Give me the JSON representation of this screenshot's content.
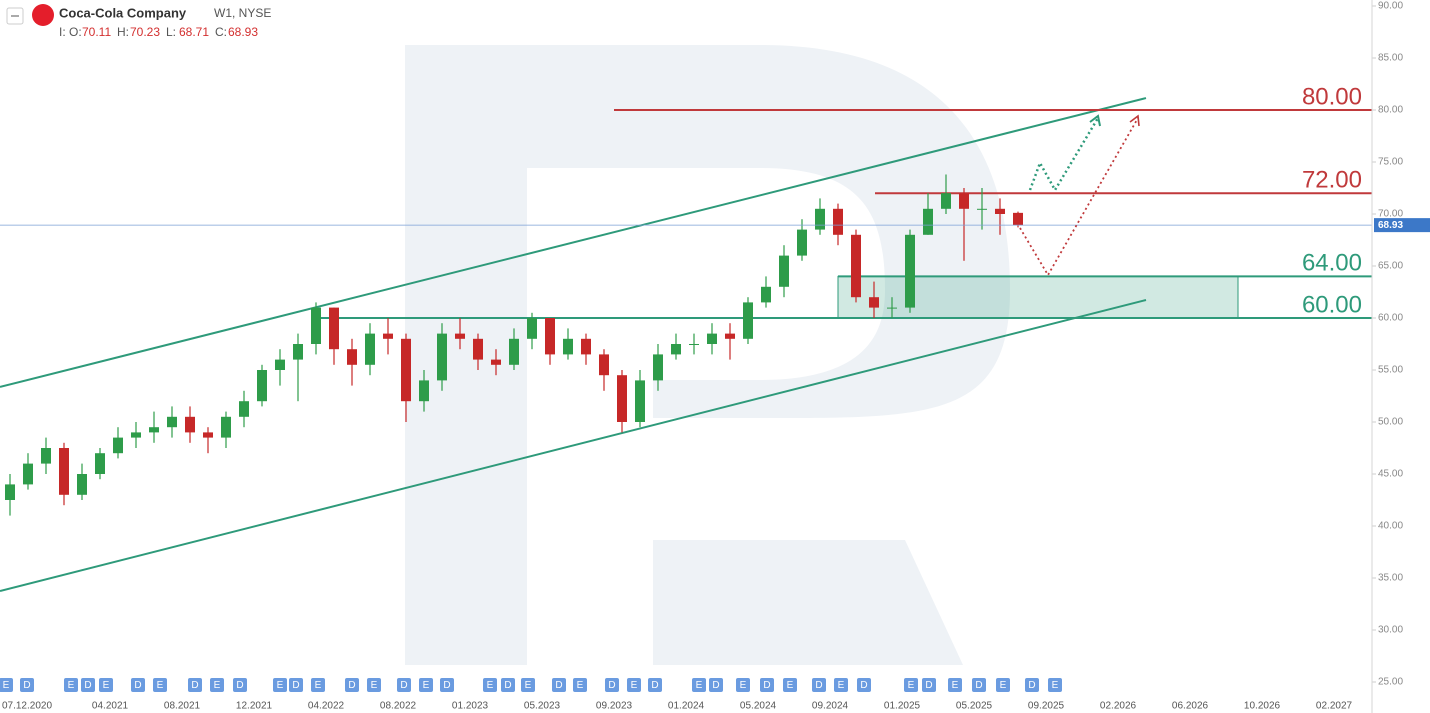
{
  "header": {
    "name": "Coca-Cola Company",
    "meta": "W1, NYSE",
    "prefix": "I:",
    "o": "O:",
    "h": "H:",
    "l": "L:",
    "c": "C:"
  },
  "chart_data": {
    "type": "candlestick",
    "open": [
      42.5,
      44,
      46,
      47.5,
      43,
      45,
      47,
      48.5,
      49,
      49.5,
      50.5,
      49,
      48.5,
      50.5,
      52,
      55,
      56,
      57.5,
      61,
      57,
      55.5,
      58.5,
      58,
      52,
      54,
      58.5,
      58,
      56,
      55.5,
      58,
      60,
      56.5,
      58,
      56.5,
      54.5,
      50,
      54,
      56.5,
      57.5,
      57.5,
      58.5,
      58,
      61.5,
      63,
      66,
      68.5,
      70.5,
      68,
      62,
      61,
      61,
      68,
      70.5,
      72,
      70.5,
      70.5,
      70.11
    ],
    "high": [
      45,
      47,
      48.5,
      48,
      46,
      47.5,
      49.5,
      50,
      51,
      51.5,
      51.5,
      49.5,
      51,
      53,
      55.5,
      57,
      58.5,
      61.5,
      61,
      58,
      59.5,
      60,
      58.5,
      55,
      59.5,
      60,
      58.5,
      57,
      59,
      60.5,
      60,
      59,
      58.5,
      57,
      55,
      55,
      57.5,
      58.5,
      58.5,
      59.5,
      59.5,
      62,
      64,
      67,
      69.5,
      71.5,
      71,
      68.5,
      63.5,
      62,
      68.5,
      72,
      73.8,
      72.5,
      72.5,
      71.5,
      70.23
    ],
    "low": [
      41,
      43.5,
      45,
      42,
      42.5,
      44.5,
      46.5,
      47.5,
      48,
      48.5,
      48,
      47,
      47.5,
      49.5,
      51.5,
      53.5,
      52,
      56.5,
      55.5,
      53.5,
      54.5,
      56.5,
      50,
      51,
      53,
      57,
      55,
      54.5,
      55,
      57,
      55.5,
      56,
      55.5,
      53,
      49,
      49.5,
      53,
      56,
      56.5,
      56.5,
      56,
      57.5,
      61,
      62,
      65.5,
      68,
      67,
      61.5,
      60,
      60,
      60.5,
      68,
      70,
      65.5,
      68.5,
      68,
      68.71
    ],
    "close": [
      44,
      46,
      47.5,
      43,
      45,
      47,
      48.5,
      49,
      49.5,
      50.5,
      49,
      48.5,
      50.5,
      52,
      55,
      56,
      57.5,
      61,
      57,
      55.5,
      58.5,
      58,
      52,
      54,
      58.5,
      58,
      56,
      55.5,
      58,
      60,
      56.5,
      58,
      56.5,
      54.5,
      50,
      54,
      56.5,
      57.5,
      57.5,
      58.5,
      58,
      61.5,
      63,
      66,
      68.5,
      70.5,
      68,
      62,
      61,
      61,
      68,
      70.5,
      72,
      70.5,
      70.5,
      70,
      68.93
    ],
    "up_color": "#2e9c4a",
    "down_color": "#c62828",
    "ylim": [
      25,
      90
    ],
    "yticks": [
      {
        "value": 25,
        "label": "25.00"
      },
      {
        "value": 30,
        "label": "30.00"
      },
      {
        "value": 35,
        "label": "35.00"
      },
      {
        "value": 40,
        "label": "40.00"
      },
      {
        "value": 45,
        "label": "45.00"
      },
      {
        "value": 50,
        "label": "50.00"
      },
      {
        "value": 55,
        "label": "55.00"
      },
      {
        "value": 60,
        "label": "60.00"
      },
      {
        "value": 65,
        "label": "65.00"
      },
      {
        "value": 70,
        "label": "70.00"
      },
      {
        "value": 75,
        "label": "75.00"
      },
      {
        "value": 80,
        "label": "80.00"
      },
      {
        "value": 85,
        "label": "85.00"
      },
      {
        "value": 90,
        "label": "90.00"
      }
    ],
    "x_labels": [
      "07.12.2020",
      "04.2021",
      "08.2021",
      "12.2021",
      "04.2022",
      "08.2022",
      "01.2023",
      "05.2023",
      "09.2023",
      "01.2024",
      "05.2024",
      "09.2024",
      "01.2025",
      "05.2025",
      "09.2025",
      "02.2026",
      "06.2026",
      "10.2026",
      "02.2027"
    ],
    "levels": [
      {
        "value": 80,
        "label": "80.00",
        "color": "#c0393b"
      },
      {
        "value": 72,
        "label": "72.00",
        "color": "#c0393b"
      },
      {
        "value": 64,
        "label": "64.00",
        "color": "#2e9a7a"
      },
      {
        "value": 60,
        "label": "60.00",
        "color": "#2e9a7a"
      }
    ],
    "zone": [
      60,
      64
    ],
    "channel": {
      "upper": [
        53.37,
        81.15
      ],
      "lower": [
        33.75,
        61.73
      ],
      "color": "#2e9a7a"
    },
    "events": [
      "E",
      "D",
      "E",
      "D",
      "E",
      "D",
      "E",
      "D",
      "E",
      "D",
      "E",
      "D",
      "E",
      "D",
      "E",
      "D",
      "E",
      "D",
      "E",
      "D",
      "E",
      "D",
      "E",
      "D",
      "E",
      "D",
      "E",
      "D",
      "E",
      "D",
      "E",
      "D",
      "E",
      "D",
      "E",
      "D",
      "E",
      "D",
      "E",
      "D",
      "E"
    ]
  }
}
